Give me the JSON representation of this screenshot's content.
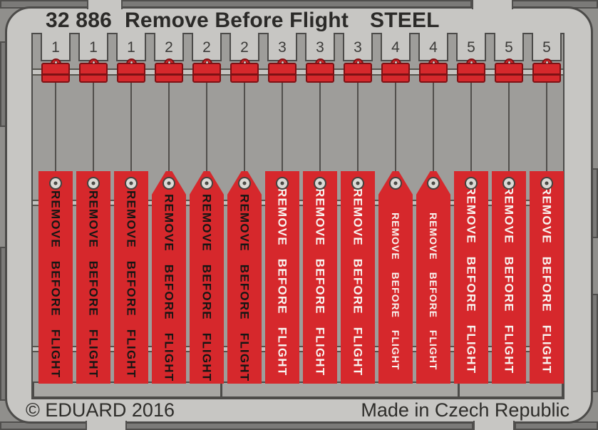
{
  "header": {
    "catalog_number": "32 886",
    "product_name": "Remove Before Flight",
    "material": "STEEL"
  },
  "footer": {
    "copyright": "© EDUARD 2016",
    "made_in": "Made in Czech Republic"
  },
  "fret": {
    "tag_text": "REMOVE BEFORE FLIGHT",
    "tags": [
      {
        "number": "1",
        "shape": "rect",
        "text_color": "black"
      },
      {
        "number": "1",
        "shape": "rect",
        "text_color": "black"
      },
      {
        "number": "1",
        "shape": "rect",
        "text_color": "black"
      },
      {
        "number": "2",
        "shape": "pointed",
        "text_color": "black"
      },
      {
        "number": "2",
        "shape": "pointed",
        "text_color": "black"
      },
      {
        "number": "2",
        "shape": "pointed",
        "text_color": "black"
      },
      {
        "number": "3",
        "shape": "rect",
        "text_color": "white"
      },
      {
        "number": "3",
        "shape": "rect",
        "text_color": "white"
      },
      {
        "number": "3",
        "shape": "rect",
        "text_color": "white"
      },
      {
        "number": "4",
        "shape": "pointed",
        "text_color": "white"
      },
      {
        "number": "4",
        "shape": "pointed",
        "text_color": "white"
      },
      {
        "number": "5",
        "shape": "rect",
        "text_color": "white"
      },
      {
        "number": "5",
        "shape": "rect",
        "text_color": "white"
      },
      {
        "number": "5",
        "shape": "rect",
        "text_color": "white"
      }
    ]
  },
  "colors": {
    "tag_red": "#d6282c",
    "clip_border_red": "#7e1114",
    "plate_gray": "#c7c6c3",
    "interior_gray": "#9e9d9a",
    "outer_gray": "#908f8c"
  }
}
